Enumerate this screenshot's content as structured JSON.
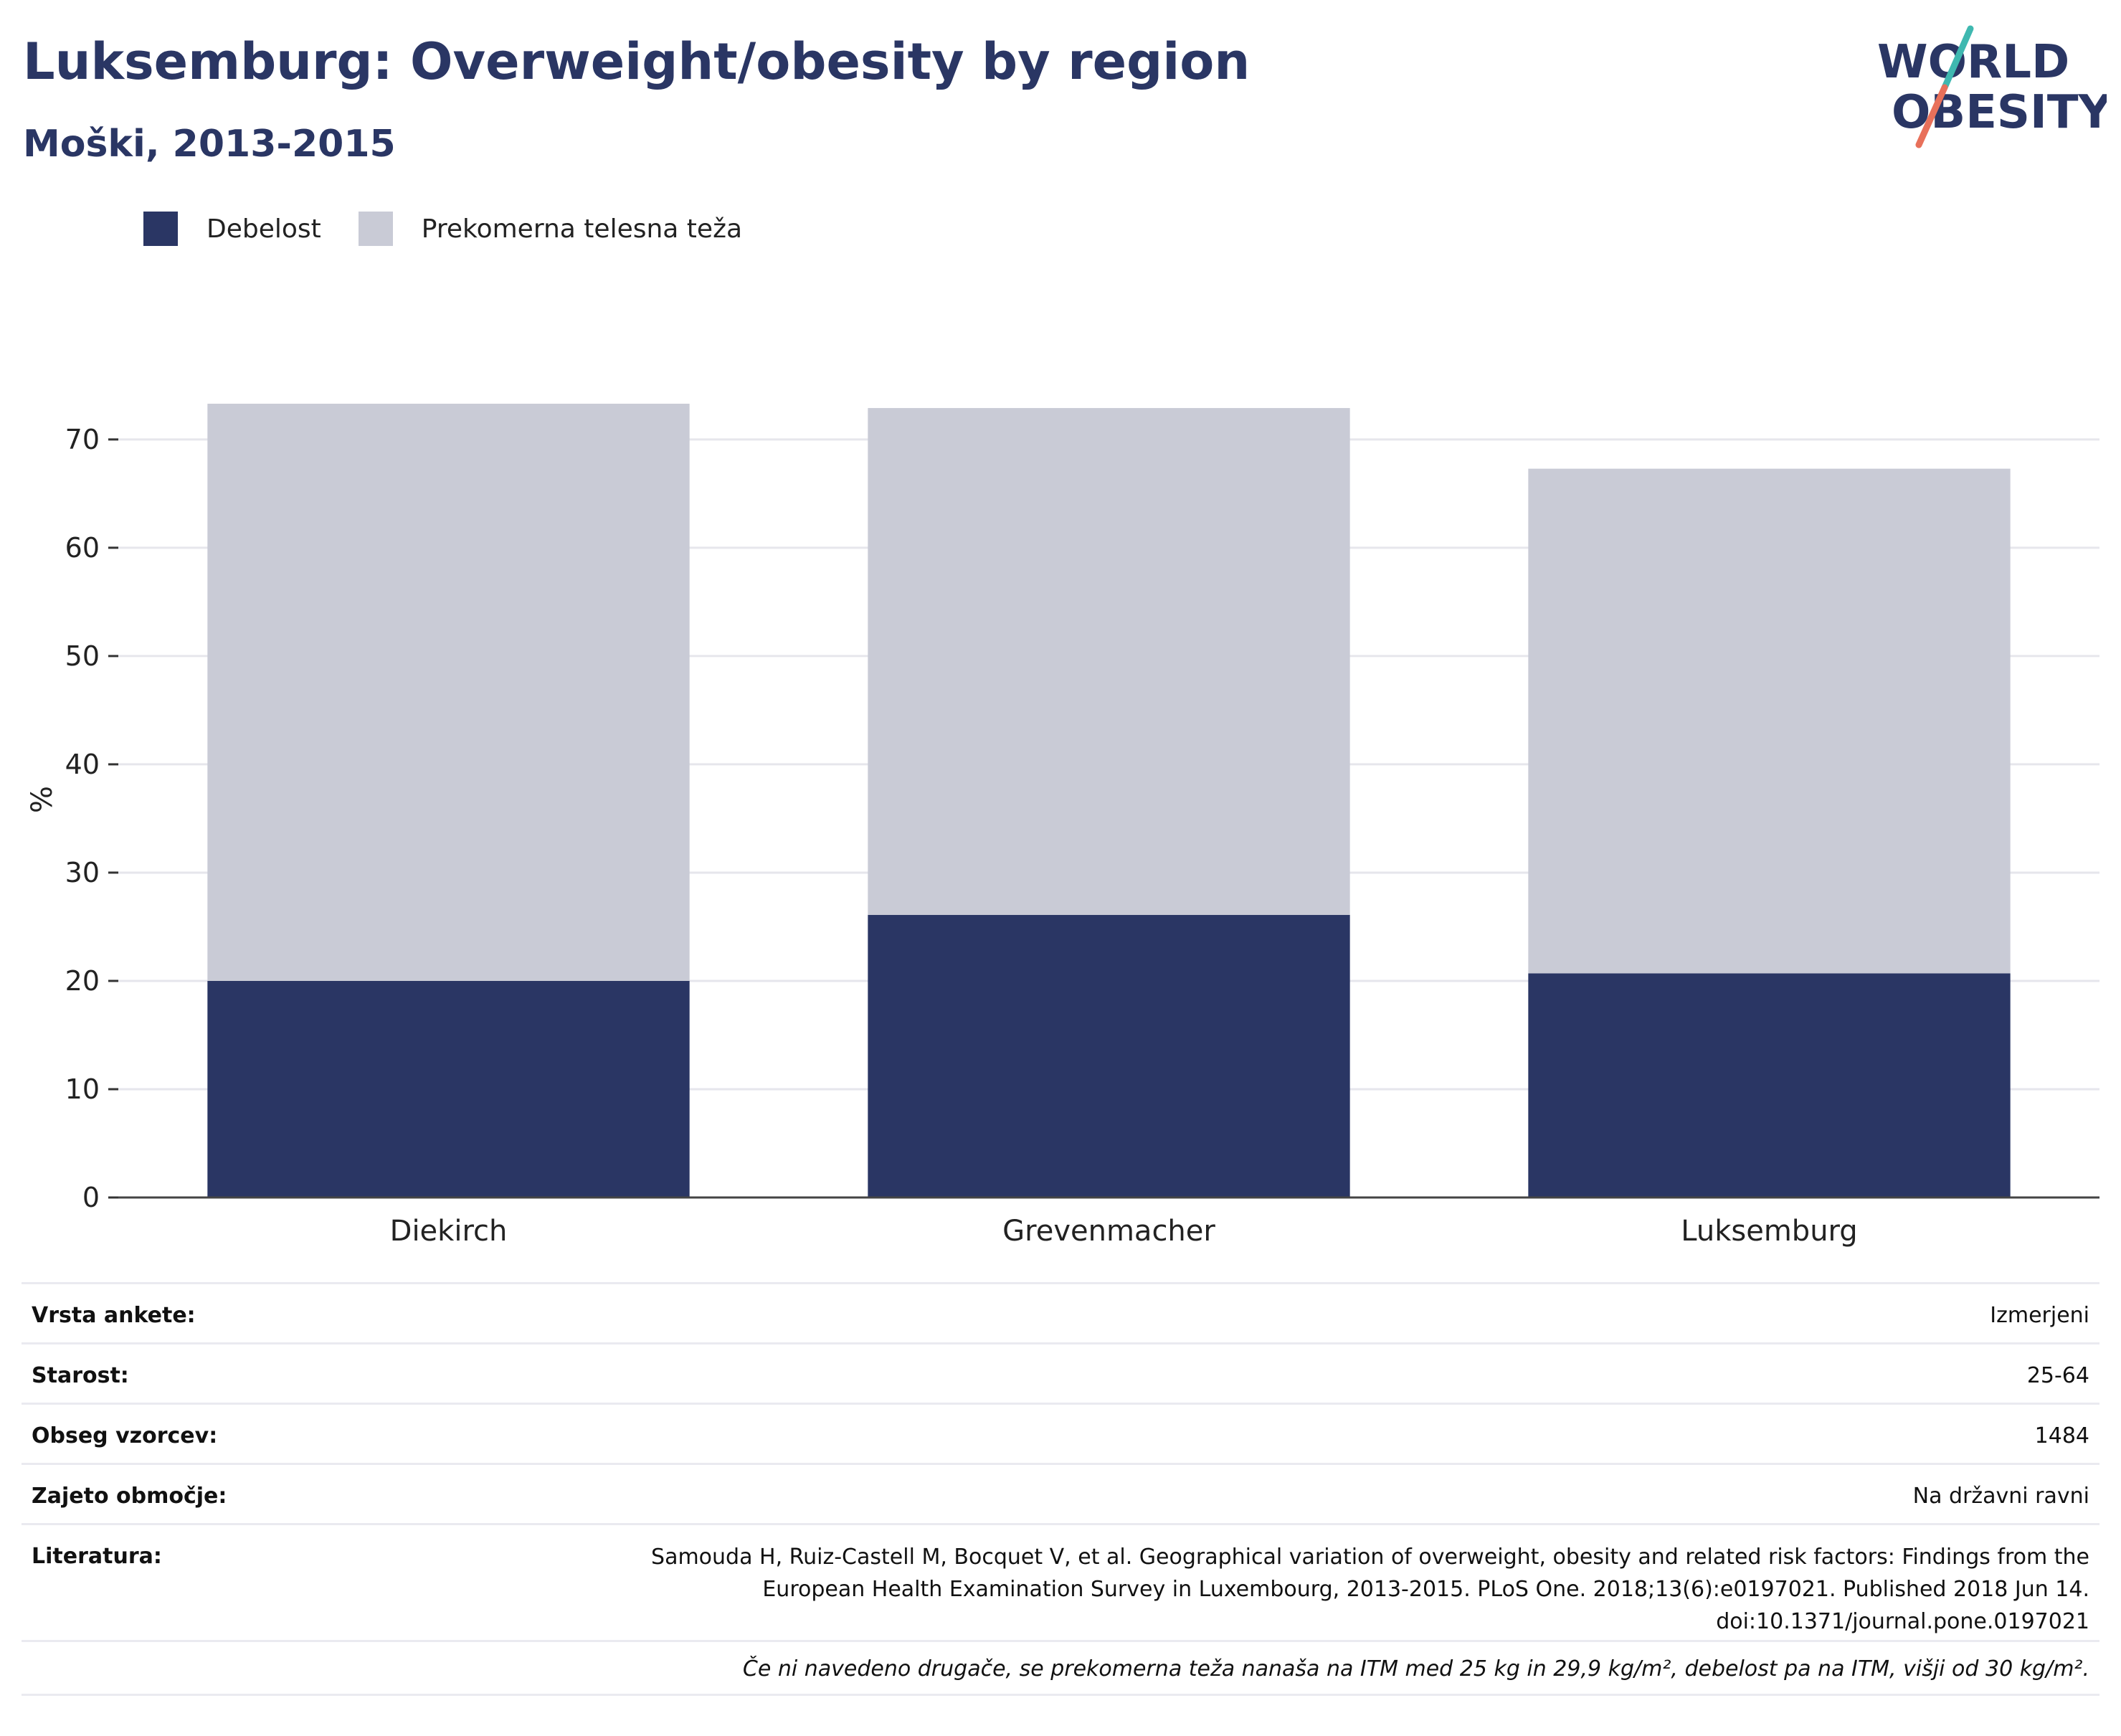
{
  "title": "Luksemburg: Overweight/obesity by region",
  "subtitle": "Moški, 2013-2015",
  "logo": {
    "line1": "WORLD",
    "line2": "OBESITY"
  },
  "colors": {
    "obesity": "#2a3664",
    "overweight": "#c9cbd6",
    "title": "#2a3664",
    "logo_teal": "#3fb8b0",
    "logo_coral": "#e8705a"
  },
  "legend": [
    {
      "label": "Debelost",
      "color": "#2a3664"
    },
    {
      "label": "Prekomerna telesna teža",
      "color": "#c9cbd6"
    }
  ],
  "chart_data": {
    "type": "bar",
    "stacked": true,
    "categories": [
      "Diekirch",
      "Grevenmacher",
      "Luksemburg"
    ],
    "series": [
      {
        "name": "Debelost",
        "values": [
          20.0,
          26.1,
          20.7
        ]
      },
      {
        "name": "Prekomerna telesna teža",
        "values": [
          53.3,
          46.8,
          46.6
        ]
      }
    ],
    "ylabel": "%",
    "ylim": [
      0,
      73.5
    ],
    "yticks": [
      0,
      10,
      20,
      30,
      40,
      50,
      60,
      70
    ],
    "grid": true,
    "legend_position": "top-left"
  },
  "info": [
    {
      "label": "Vrsta ankete:",
      "value": "Izmerjeni"
    },
    {
      "label": "Starost:",
      "value": "25-64"
    },
    {
      "label": "Obseg vzorcev:",
      "value": "1484"
    },
    {
      "label": "Zajeto območje:",
      "value": "Na državni ravni"
    }
  ],
  "reference": {
    "label": "Literatura:",
    "value": "Samouda H, Ruiz-Castell M, Bocquet V, et al. Geographical variation of overweight, obesity and related risk factors: Findings from the European Health Examination Survey in Luxembourg, 2013-2015. PLoS One. 2018;13(6):e0197021. Published 2018 Jun 14. doi:10.1371/journal.pone.0197021"
  },
  "footnote": "Če ni navedeno drugače, se prekomerna teža nanaša na ITM med 25 kg in 29,9 kg/m², debelost pa na ITM, višji od 30 kg/m²."
}
